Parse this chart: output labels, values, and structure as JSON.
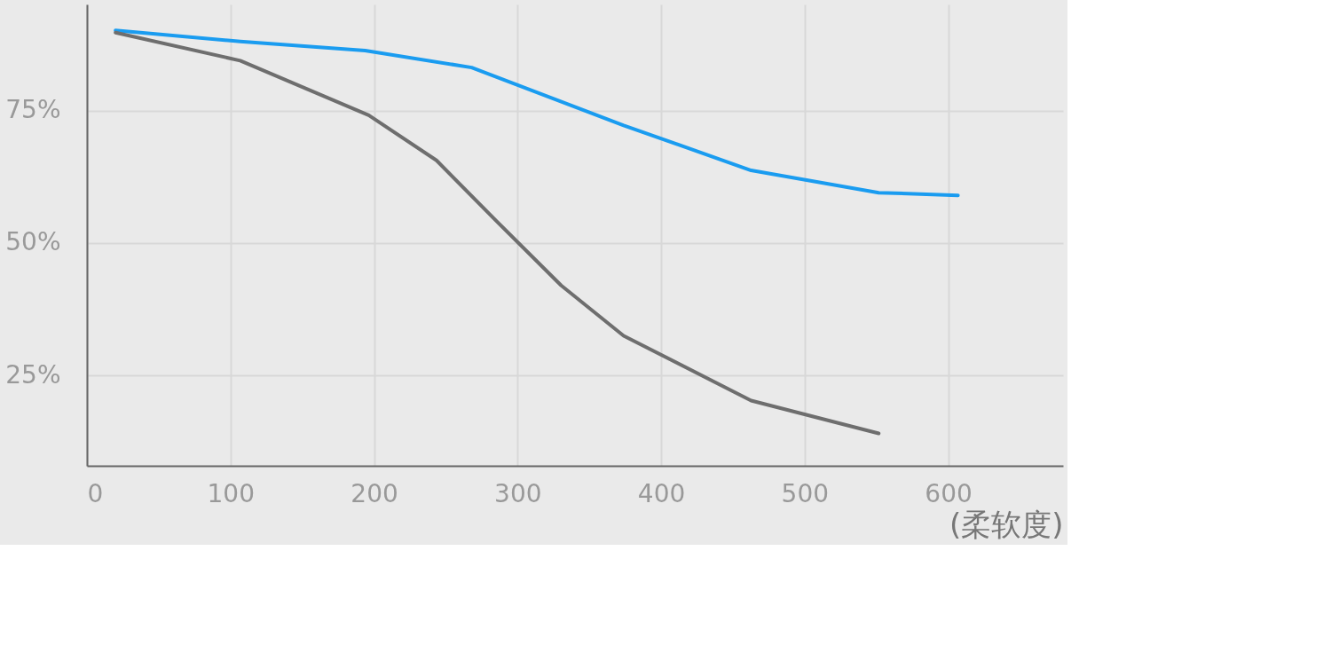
{
  "chart_data": {
    "type": "line",
    "xlabel": "(柔软度)",
    "xlim": [
      0,
      680
    ],
    "ylim": [
      8,
      95
    ],
    "xticks": [
      0,
      100,
      200,
      300,
      400,
      500,
      600
    ],
    "yticks": [
      {
        "value": 25,
        "label": "25%"
      },
      {
        "value": 50,
        "label": "50%"
      },
      {
        "value": 75,
        "label": "75%"
      }
    ],
    "grid": true,
    "line_style": "solid",
    "series": [
      {
        "color": "#1a9cf0",
        "x": [
          19.9,
          106.8,
          193.8,
          268,
          373.9,
          462.7,
          551.6,
          606.8
        ],
        "values": [
          90.1,
          88.0,
          86.3,
          83.1,
          72.2,
          63.7,
          59.5,
          59.0
        ]
      },
      {
        "color": "#6e6e6e",
        "x": [
          19.9,
          106.8,
          196.3,
          243.5,
          285.1,
          330.4,
          373.9,
          462.7,
          551.6
        ],
        "values": [
          89.7,
          84.4,
          74.1,
          65.6,
          54.2,
          42.0,
          32.5,
          20.3,
          14.1
        ]
      }
    ]
  }
}
